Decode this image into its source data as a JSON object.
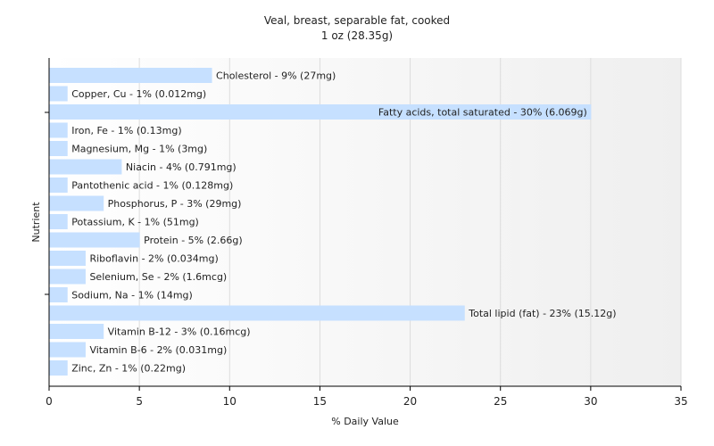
{
  "chart_data": {
    "type": "bar",
    "orientation": "horizontal",
    "title": "Veal, breast, separable fat, cooked",
    "subtitle": "1 oz (28.35g)",
    "xlabel": "% Daily Value",
    "ylabel": "Nutrient",
    "xlim": [
      0,
      35
    ],
    "xticks": [
      "0",
      "5",
      "10",
      "15",
      "20",
      "25",
      "30",
      "35"
    ],
    "grid": true,
    "bar_color": "#c6e0ff",
    "categories": [
      "Cholesterol",
      "Copper, Cu",
      "Fatty acids, total saturated",
      "Iron, Fe",
      "Magnesium, Mg",
      "Niacin",
      "Pantothenic acid",
      "Phosphorus, P",
      "Potassium, K",
      "Protein",
      "Riboflavin",
      "Selenium, Se",
      "Sodium, Na",
      "Total lipid (fat)",
      "Vitamin B-12",
      "Vitamin B-6",
      "Zinc, Zn"
    ],
    "values": [
      9,
      1,
      30,
      1,
      1,
      4,
      1,
      3,
      1,
      5,
      2,
      2,
      1,
      23,
      3,
      2,
      1
    ],
    "labels": [
      "Cholesterol - 9% (27mg)",
      "Copper, Cu - 1% (0.012mg)",
      "Fatty acids, total saturated - 30% (6.069g)",
      "Iron, Fe - 1% (0.13mg)",
      "Magnesium, Mg - 1% (3mg)",
      "Niacin - 4% (0.791mg)",
      "Pantothenic acid - 1% (0.128mg)",
      "Phosphorus, P - 3% (29mg)",
      "Potassium, K - 1% (51mg)",
      "Protein - 5% (2.66g)",
      "Riboflavin - 2% (0.034mg)",
      "Selenium, Se - 2% (1.6mcg)",
      "Sodium, Na - 1% (14mg)",
      "Total lipid (fat) - 23% (15.12g)",
      "Vitamin B-12 - 3% (0.16mcg)",
      "Vitamin B-6 - 2% (0.031mg)",
      "Zinc, Zn - 1% (0.22mg)"
    ]
  }
}
